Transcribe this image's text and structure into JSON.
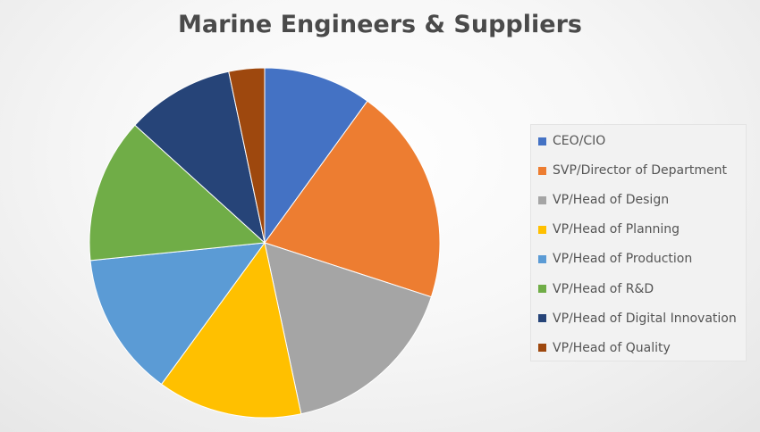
{
  "chart_data": {
    "type": "pie",
    "title": "Marine Engineers & Suppliers",
    "legend_position": "right",
    "categories": [
      "CEO/CIO",
      "SVP/Director of Department",
      "VP/Head of Design",
      "VP/Head of Planning",
      "VP/Head of Production",
      "VP/Head of R&D",
      "VP/Head of Digital Innovation",
      "VP/Head of Quality"
    ],
    "values": [
      10.3,
      20.7,
      17.2,
      13.8,
      13.8,
      13.8,
      10.3,
      3.4
    ],
    "colors": [
      "#4472C4",
      "#ED7D31",
      "#A5A5A5",
      "#FFC000",
      "#5B9BD5",
      "#70AD47",
      "#264478",
      "#9E480E"
    ]
  }
}
